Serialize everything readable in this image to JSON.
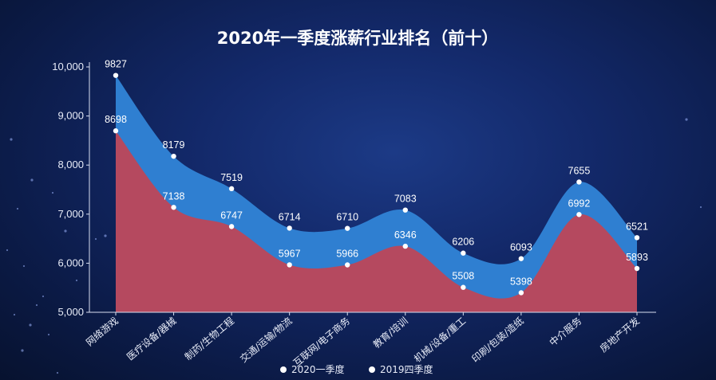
{
  "chart_data": {
    "type": "area",
    "title": "2020年一季度涨薪行业排名（前十）",
    "xlabel": "",
    "ylabel": "",
    "ylim": [
      5000,
      10000
    ],
    "yticks": [
      "5,000",
      "6,000",
      "7,000",
      "8,000",
      "9,000",
      "10,000"
    ],
    "yticks_values": [
      5000,
      6000,
      7000,
      8000,
      9000,
      10000
    ],
    "categories": [
      "网络游戏",
      "医疗设备/器械",
      "制药/生物工程",
      "交通/运输/物流",
      "互联网/电子商务",
      "教育/培训",
      "机械/设备/重工",
      "印刷/包装/造纸",
      "中介服务",
      "房地产开发"
    ],
    "series": [
      {
        "name": "2020一季度",
        "values": [
          9827,
          8179,
          7519,
          6714,
          6710,
          7083,
          6206,
          6093,
          7655,
          6521
        ],
        "color": "#2f7fd1"
      },
      {
        "name": "2019四季度",
        "values": [
          8698,
          7138,
          6747,
          5967,
          5966,
          6346,
          5508,
          5398,
          6992,
          5893
        ],
        "color": "#b5495f"
      }
    ],
    "grid": false,
    "legend_position": "bottom"
  }
}
